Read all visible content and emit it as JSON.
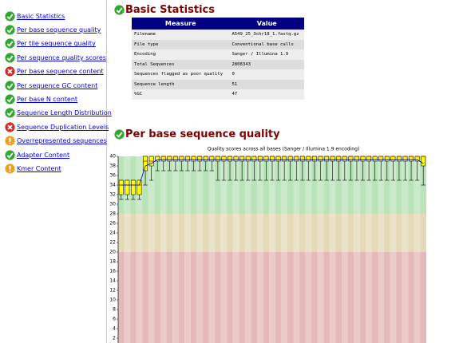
{
  "summary": [
    {
      "label": "Basic Statistics",
      "status": "pass"
    },
    {
      "label": "Per base sequence quality",
      "status": "pass"
    },
    {
      "label": "Per tile sequence quality",
      "status": "pass"
    },
    {
      "label": "Per sequence quality scores",
      "status": "pass"
    },
    {
      "label": "Per base sequence content",
      "status": "fail"
    },
    {
      "label": "Per sequence GC content",
      "status": "pass"
    },
    {
      "label": "Per base N content",
      "status": "pass"
    },
    {
      "label": "Sequence Length Distribution",
      "status": "pass"
    },
    {
      "label": "Sequence Duplication Levels",
      "status": "fail"
    },
    {
      "label": "Overrepresented sequences",
      "status": "warn"
    },
    {
      "label": "Adapter Content",
      "status": "pass"
    },
    {
      "label": "Kmer Content",
      "status": "warn"
    }
  ],
  "basic_statistics": {
    "title": "Basic Statistics",
    "status": "pass",
    "columns": [
      "Measure",
      "Value"
    ],
    "rows": [
      [
        "Filename",
        "A549_25_3chr18_1.fastq.gz"
      ],
      [
        "File type",
        "Conventional base calls"
      ],
      [
        "Encoding",
        "Sanger / Illumina 1.9"
      ],
      [
        "Total Sequences",
        "2808343"
      ],
      [
        "Sequences flagged as poor quality",
        "0"
      ],
      [
        "Sequence length",
        "51"
      ],
      [
        "%GC",
        "47"
      ]
    ]
  },
  "quality_section": {
    "title": "Per base sequence quality",
    "status": "pass"
  },
  "chart_data": {
    "type": "boxplot",
    "title": "Quality scores across all bases (Sanger / Illumina 1.9 encoding)",
    "ylim": [
      0,
      40
    ],
    "yticks": [
      2,
      4,
      6,
      8,
      10,
      12,
      14,
      16,
      18,
      20,
      22,
      24,
      26,
      28,
      30,
      32,
      34,
      36,
      38,
      40
    ],
    "zones": [
      {
        "from": 28,
        "to": 40,
        "color": "#b9e3b9"
      },
      {
        "from": 20,
        "to": 28,
        "color": "#e5dab7"
      },
      {
        "from": 0,
        "to": 20,
        "color": "#e5b9b9"
      }
    ],
    "box_color": "#ffff00",
    "median_color": "#cc0000",
    "mean_color": "#0000cc",
    "whisker_low": [
      31,
      31,
      31,
      31,
      34,
      35,
      37,
      37,
      37,
      37,
      37,
      37,
      37,
      37,
      37,
      37,
      35,
      35,
      35,
      35,
      35,
      35,
      35,
      35,
      35,
      35,
      35,
      35,
      35,
      35,
      35,
      35,
      35,
      35,
      35,
      35,
      35,
      35,
      35,
      35,
      35,
      35,
      35,
      35,
      35,
      35,
      35,
      35,
      35,
      35,
      34
    ],
    "q1": [
      32,
      32,
      32,
      32,
      37,
      38,
      39,
      39,
      39,
      39,
      39,
      39,
      39,
      39,
      39,
      39,
      39,
      39,
      39,
      39,
      39,
      39,
      39,
      39,
      39,
      39,
      39,
      39,
      39,
      39,
      39,
      39,
      39,
      39,
      39,
      39,
      39,
      39,
      39,
      39,
      39,
      39,
      39,
      39,
      39,
      39,
      39,
      39,
      39,
      39,
      38
    ],
    "median": [
      34,
      34,
      34,
      34,
      39,
      39,
      40,
      40,
      40,
      40,
      40,
      40,
      40,
      40,
      40,
      40,
      40,
      40,
      40,
      40,
      40,
      40,
      40,
      40,
      40,
      40,
      40,
      40,
      40,
      40,
      40,
      40,
      40,
      40,
      40,
      40,
      40,
      40,
      40,
      40,
      40,
      40,
      40,
      40,
      40,
      40,
      40,
      40,
      40,
      40,
      40
    ],
    "q3": [
      35,
      35,
      35,
      35,
      40,
      40,
      40,
      40,
      40,
      40,
      40,
      40,
      40,
      40,
      40,
      40,
      40,
      40,
      40,
      40,
      40,
      40,
      40,
      40,
      40,
      40,
      40,
      40,
      40,
      40,
      40,
      40,
      40,
      40,
      40,
      40,
      40,
      40,
      40,
      40,
      40,
      40,
      40,
      40,
      40,
      40,
      40,
      40,
      40,
      40,
      40
    ],
    "whisker_high": [
      35,
      35,
      35,
      35,
      40,
      40,
      40,
      40,
      40,
      40,
      40,
      40,
      40,
      40,
      40,
      40,
      40,
      40,
      40,
      40,
      40,
      40,
      40,
      40,
      40,
      40,
      40,
      40,
      40,
      40,
      40,
      40,
      40,
      40,
      40,
      40,
      40,
      40,
      40,
      40,
      40,
      40,
      40,
      40,
      40,
      40,
      40,
      40,
      40,
      40,
      40
    ],
    "mean": [
      34,
      34,
      34,
      34,
      38,
      38.5,
      39.3,
      39.3,
      39.3,
      39.3,
      39.3,
      39.3,
      39.3,
      39.3,
      39.3,
      39.3,
      39.3,
      39.3,
      39.3,
      39.3,
      39.3,
      39.3,
      39.3,
      39.3,
      39.3,
      39.3,
      39.3,
      39.3,
      39.3,
      39.3,
      39.3,
      39.3,
      39.3,
      39.3,
      39.3,
      39.3,
      39.3,
      39.3,
      39.3,
      39.3,
      39.3,
      39.3,
      39.3,
      39.3,
      39.3,
      39.3,
      39.3,
      39.3,
      39.3,
      39.3,
      38.5
    ]
  }
}
